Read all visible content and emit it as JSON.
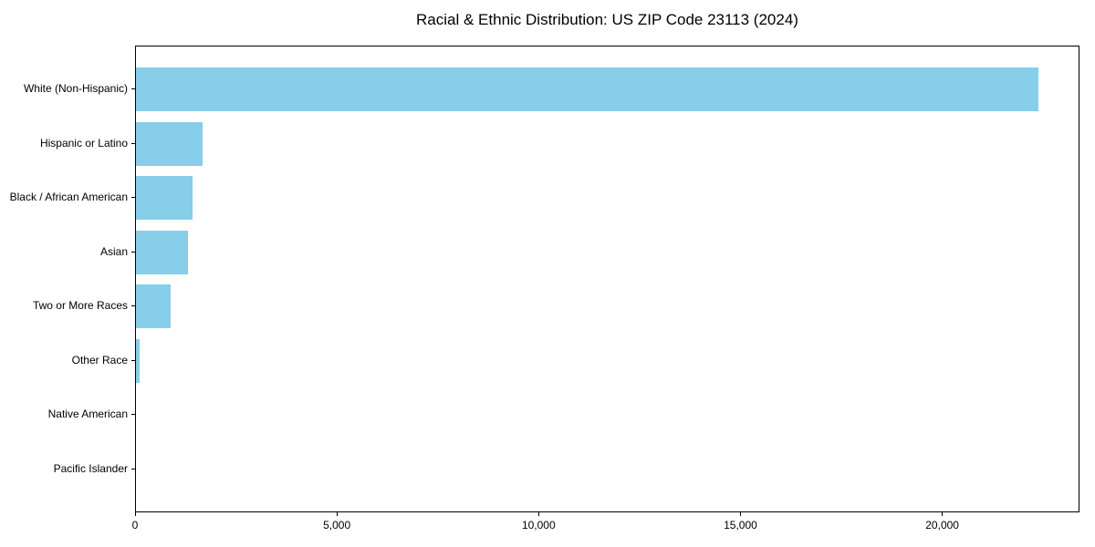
{
  "chart_data": {
    "type": "bar",
    "orientation": "horizontal",
    "title": "Racial & Ethnic Distribution: US ZIP Code 23113 (2024)",
    "categories": [
      "White (Non-Hispanic)",
      "Hispanic or Latino",
      "Black / African American",
      "Asian",
      "Two or More Races",
      "Other Race",
      "Native American",
      "Pacific Islander"
    ],
    "values": [
      22350,
      1650,
      1400,
      1280,
      850,
      80,
      0,
      0
    ],
    "bar_color": "#87CEEB",
    "xlabel": "",
    "ylabel": "",
    "xlim": [
      0,
      23400
    ],
    "x_ticks": [
      0,
      5000,
      10000,
      15000,
      20000
    ],
    "x_tick_labels": [
      "0",
      "5,000",
      "10,000",
      "15,000",
      "20,000"
    ],
    "grid": false,
    "legend": false
  }
}
